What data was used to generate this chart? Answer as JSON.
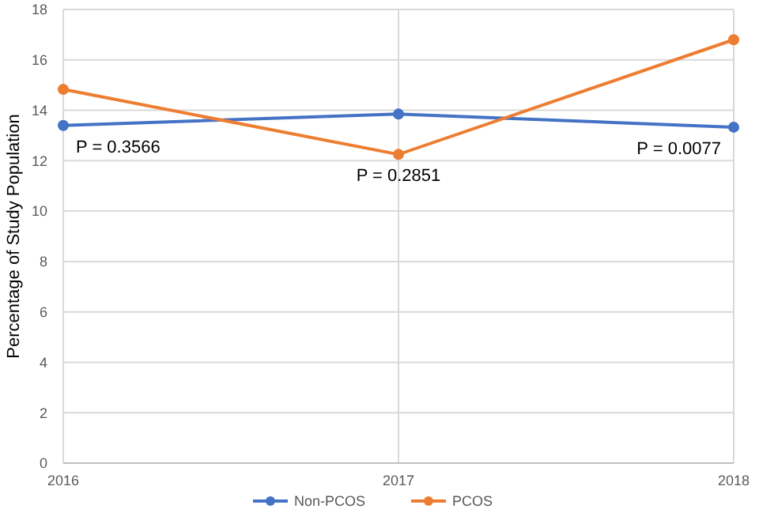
{
  "chart_data": {
    "type": "line",
    "ylabel": "Percentage of Study Population",
    "x": [
      2016,
      2017,
      2018
    ],
    "xlim": [
      2016,
      2018
    ],
    "xticks": [
      2016,
      2017,
      2018
    ],
    "ylim": [
      0,
      18
    ],
    "yticks": [
      0,
      2,
      4,
      6,
      8,
      10,
      12,
      14,
      16,
      18
    ],
    "grid": true,
    "legend": "bottom",
    "marker": "circle",
    "line_style": "solid",
    "series": [
      {
        "name": "Non-PCOS",
        "color": "#4472c4",
        "values": [
          13.4,
          13.85,
          13.33
        ]
      },
      {
        "name": "PCOS",
        "color": "#ed7d31",
        "values": [
          14.83,
          12.25,
          16.8
        ]
      }
    ],
    "annotations": [
      "P = 0.3566",
      "P = 0.2851",
      "P = 0.0077"
    ]
  }
}
